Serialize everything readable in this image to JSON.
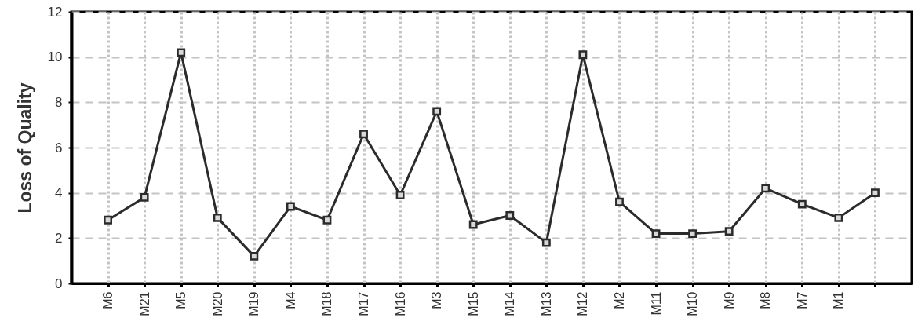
{
  "chart_data": {
    "type": "line",
    "ylabel": "Loss of Quality",
    "categories": [
      "M6",
      "M21",
      "M5",
      "M20",
      "M19",
      "M4",
      "M18",
      "M17",
      "M16",
      "M3",
      "M15",
      "M14",
      "M13",
      "M12",
      "M2",
      "M11",
      "M10",
      "M9",
      "M8",
      "M7",
      "M1",
      null
    ],
    "series": [
      {
        "color": "#2b2b2b",
        "values": [
          2.8,
          3.8,
          10.2,
          2.9,
          1.2,
          3.4,
          2.8,
          6.6,
          3.9,
          7.6,
          2.6,
          3.0,
          1.8,
          10.1,
          3.6,
          2.2,
          2.2,
          2.3,
          4.2,
          3.5,
          2.9,
          4.0
        ]
      }
    ],
    "ylim": [
      0,
      12
    ],
    "yticks": [
      0,
      2,
      4,
      6,
      8,
      10,
      12
    ],
    "grid": true,
    "marker": "square"
  }
}
